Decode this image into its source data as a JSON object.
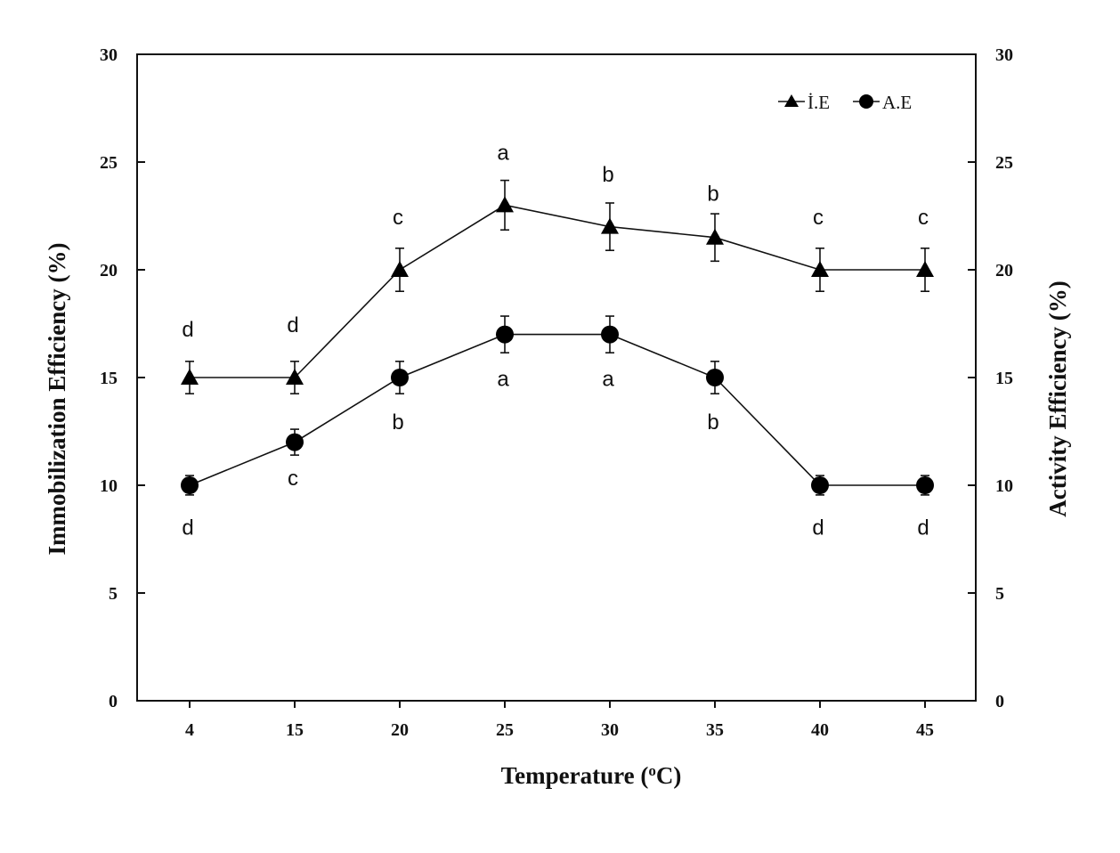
{
  "chart_data": {
    "type": "line",
    "xlabel_main": "Temperature (",
    "xlabel_sup": "o",
    "xlabel_unit": "C)",
    "ylabel_left": "Immobilization Efficiency (%)",
    "ylabel_right": "Activity Efficiency (%)",
    "categories": [
      "4",
      "15",
      "20",
      "25",
      "30",
      "35",
      "40",
      "45"
    ],
    "ylim": [
      0,
      30
    ],
    "yticks": [
      "0",
      "5",
      "10",
      "15",
      "20",
      "25",
      "30"
    ],
    "legend_position": "top-right",
    "grid": false,
    "series": [
      {
        "name": "İ.E",
        "marker": "triangle",
        "values": [
          15,
          15,
          20,
          23,
          22,
          21.5,
          20,
          20
        ],
        "errors": [
          0.75,
          0.75,
          1.0,
          1.15,
          1.1,
          1.1,
          1.0,
          1.0
        ],
        "sig_labels": [
          "d",
          "d",
          "c",
          "a",
          "b",
          "b",
          "c",
          "c"
        ],
        "sig_label_values": [
          16.9,
          17.1,
          22.1,
          25.1,
          24.1,
          23.2,
          22.1,
          22.1
        ]
      },
      {
        "name": "A.E",
        "marker": "circle",
        "values": [
          10,
          12,
          15,
          17,
          17,
          15,
          10,
          10
        ],
        "errors": [
          0.45,
          0.6,
          0.75,
          0.85,
          0.85,
          0.75,
          0.45,
          0.45
        ],
        "sig_labels": [
          "d",
          "c",
          "b",
          "a",
          "a",
          "b",
          "d",
          "d"
        ],
        "sig_label_values": [
          7.7,
          10.0,
          12.6,
          14.6,
          14.6,
          12.6,
          7.7,
          7.7
        ]
      }
    ]
  }
}
